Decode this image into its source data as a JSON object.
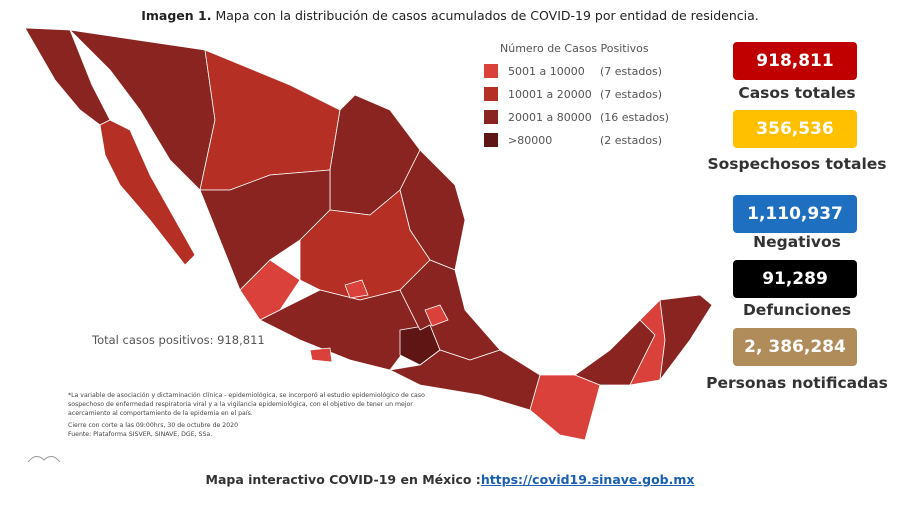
{
  "caption": {
    "label": "Imagen 1.",
    "text": "Mapa con la distribución de casos acumulados de COVID-19 por entidad de residencia."
  },
  "legend": {
    "title": "Número de Casos Positivos",
    "items": [
      {
        "range": "5001 a 10000",
        "count": "(7 estados)",
        "color": "#d9413a"
      },
      {
        "range": "10001 a 20000",
        "count": "(7 estados)",
        "color": "#b52f25"
      },
      {
        "range": "20001 a 80000",
        "count": "(16 estados)",
        "color": "#8a2420"
      },
      {
        "range": ">80000",
        "count": "(2 estados)",
        "color": "#5e1514"
      }
    ]
  },
  "total_label": "Total casos positivos: 918,811",
  "stats": [
    {
      "value": "918,811",
      "label": "Casos totales",
      "color": "#c00000"
    },
    {
      "value": "356,536",
      "label": "Sospechosos totales",
      "color": "#ffc000"
    },
    {
      "value": "1,110,937",
      "label": "Negativos",
      "color": "#1f6fc0"
    },
    {
      "value": "91,289",
      "label": "Defunciones",
      "color": "#000000"
    },
    {
      "value": "2, 386,284",
      "label": "Personas notificadas",
      "color": "#b08c5a"
    }
  ],
  "notes": [
    "*La variable de asociación y dictaminación clínica - epidemiológica, se incorporó al estudio epidemiológico de caso sospechoso de enfermedad respiratoria viral y a la vigilancia epidemiológica, con el objetivo de tener un mejor acercamiento al comportamiento de la epidemia en el país.",
    "Cierre con corte a las 09:00hrs, 30 de octubre de 2020",
    "Fuente: Plataforma SISVER, SINAVE, DGE, SSa."
  ],
  "footer": {
    "text": "Mapa interactivo COVID-19 en México :",
    "link": "https://covid19.sinave.gob.mx"
  }
}
